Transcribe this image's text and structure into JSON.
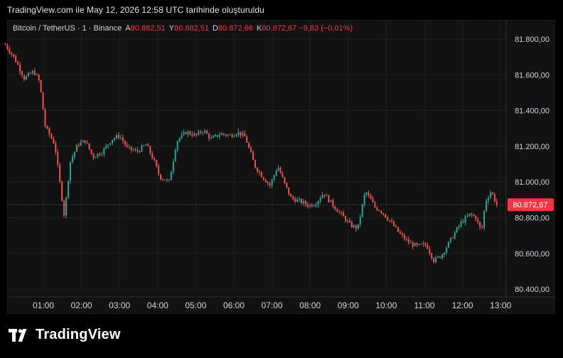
{
  "header": {
    "created_text": "TradingView.com ile May 12, 2026 12:58 UTC tarihinde oluşturuldu"
  },
  "legend": {
    "symbol": "Bitcoin / TetherUS · 1 · Binance",
    "open_label": "A",
    "open_value": "80.882,51",
    "high_label": "Y",
    "high_value": "80.882,51",
    "low_label": "D",
    "low_value": "80.872,66",
    "close_label": "K",
    "close_value": "80.872,67",
    "change": "−9,83 (−0,01%)"
  },
  "footer": {
    "brand": "TradingView"
  },
  "colors": {
    "up": "#26a69a",
    "down": "#ef5350",
    "price_label": "#f23645",
    "background": "#121212",
    "grid": "#1f1f1f"
  },
  "chart_data": {
    "type": "candlestick",
    "title": "Bitcoin / TetherUS · 1 · Binance",
    "x_tick_labels": [
      "01:00",
      "02:00",
      "03:00",
      "04:00",
      "05:00",
      "06:00",
      "07:00",
      "08:00",
      "09:00",
      "10:00",
      "11:00",
      "12:00",
      "13:00"
    ],
    "y_tick_labels": [
      "81.800,00",
      "81.600,00",
      "81.400,00",
      "81.200,00",
      "81.000,00",
      "80.800,00",
      "80.600,00",
      "80.400,00"
    ],
    "y_ticks": [
      81800,
      81600,
      81400,
      81200,
      81000,
      80800,
      80600,
      80400
    ],
    "ylim": [
      80370,
      81950
    ],
    "last_price": 80872.67,
    "last_price_label": "80.872,67",
    "grid": true,
    "series": [
      {
        "values": [
          [
            0.0,
            81770
          ],
          [
            0.25,
            81690
          ],
          [
            0.5,
            81580
          ],
          [
            0.75,
            81620
          ],
          [
            0.9,
            81560
          ],
          [
            1.05,
            81310
          ],
          [
            1.3,
            81210
          ],
          [
            1.55,
            80810
          ],
          [
            1.7,
            81110
          ],
          [
            1.9,
            81210
          ],
          [
            2.1,
            81230
          ],
          [
            2.3,
            81140
          ],
          [
            2.55,
            81170
          ],
          [
            2.8,
            81240
          ],
          [
            3.0,
            81260
          ],
          [
            3.2,
            81190
          ],
          [
            3.45,
            81170
          ],
          [
            3.7,
            81210
          ],
          [
            3.9,
            81120
          ],
          [
            4.05,
            81030
          ],
          [
            4.3,
            81000
          ],
          [
            4.5,
            81230
          ],
          [
            4.75,
            81280
          ],
          [
            5.0,
            81260
          ],
          [
            5.2,
            81290
          ],
          [
            5.4,
            81240
          ],
          [
            5.65,
            81270
          ],
          [
            5.9,
            81260
          ],
          [
            6.1,
            81280
          ],
          [
            6.3,
            81250
          ],
          [
            6.55,
            81090
          ],
          [
            6.75,
            81030
          ],
          [
            6.95,
            80980
          ],
          [
            7.15,
            81090
          ],
          [
            7.35,
            80980
          ],
          [
            7.5,
            80910
          ],
          [
            7.75,
            80890
          ],
          [
            7.95,
            80870
          ],
          [
            8.15,
            80880
          ],
          [
            8.35,
            80940
          ],
          [
            8.6,
            80870
          ],
          [
            8.85,
            80810
          ],
          [
            9.05,
            80760
          ],
          [
            9.25,
            80740
          ],
          [
            9.45,
            80950
          ],
          [
            9.7,
            80860
          ],
          [
            9.9,
            80830
          ],
          [
            10.1,
            80780
          ],
          [
            10.35,
            80710
          ],
          [
            10.6,
            80660
          ],
          [
            10.8,
            80640
          ],
          [
            11.05,
            80650
          ],
          [
            11.25,
            80560
          ],
          [
            11.45,
            80590
          ],
          [
            11.7,
            80680
          ],
          [
            11.95,
            80770
          ],
          [
            12.2,
            80820
          ],
          [
            12.35,
            80800
          ],
          [
            12.5,
            80720
          ],
          [
            12.6,
            80890
          ],
          [
            12.75,
            80950
          ],
          [
            12.9,
            80873
          ]
        ]
      }
    ]
  }
}
